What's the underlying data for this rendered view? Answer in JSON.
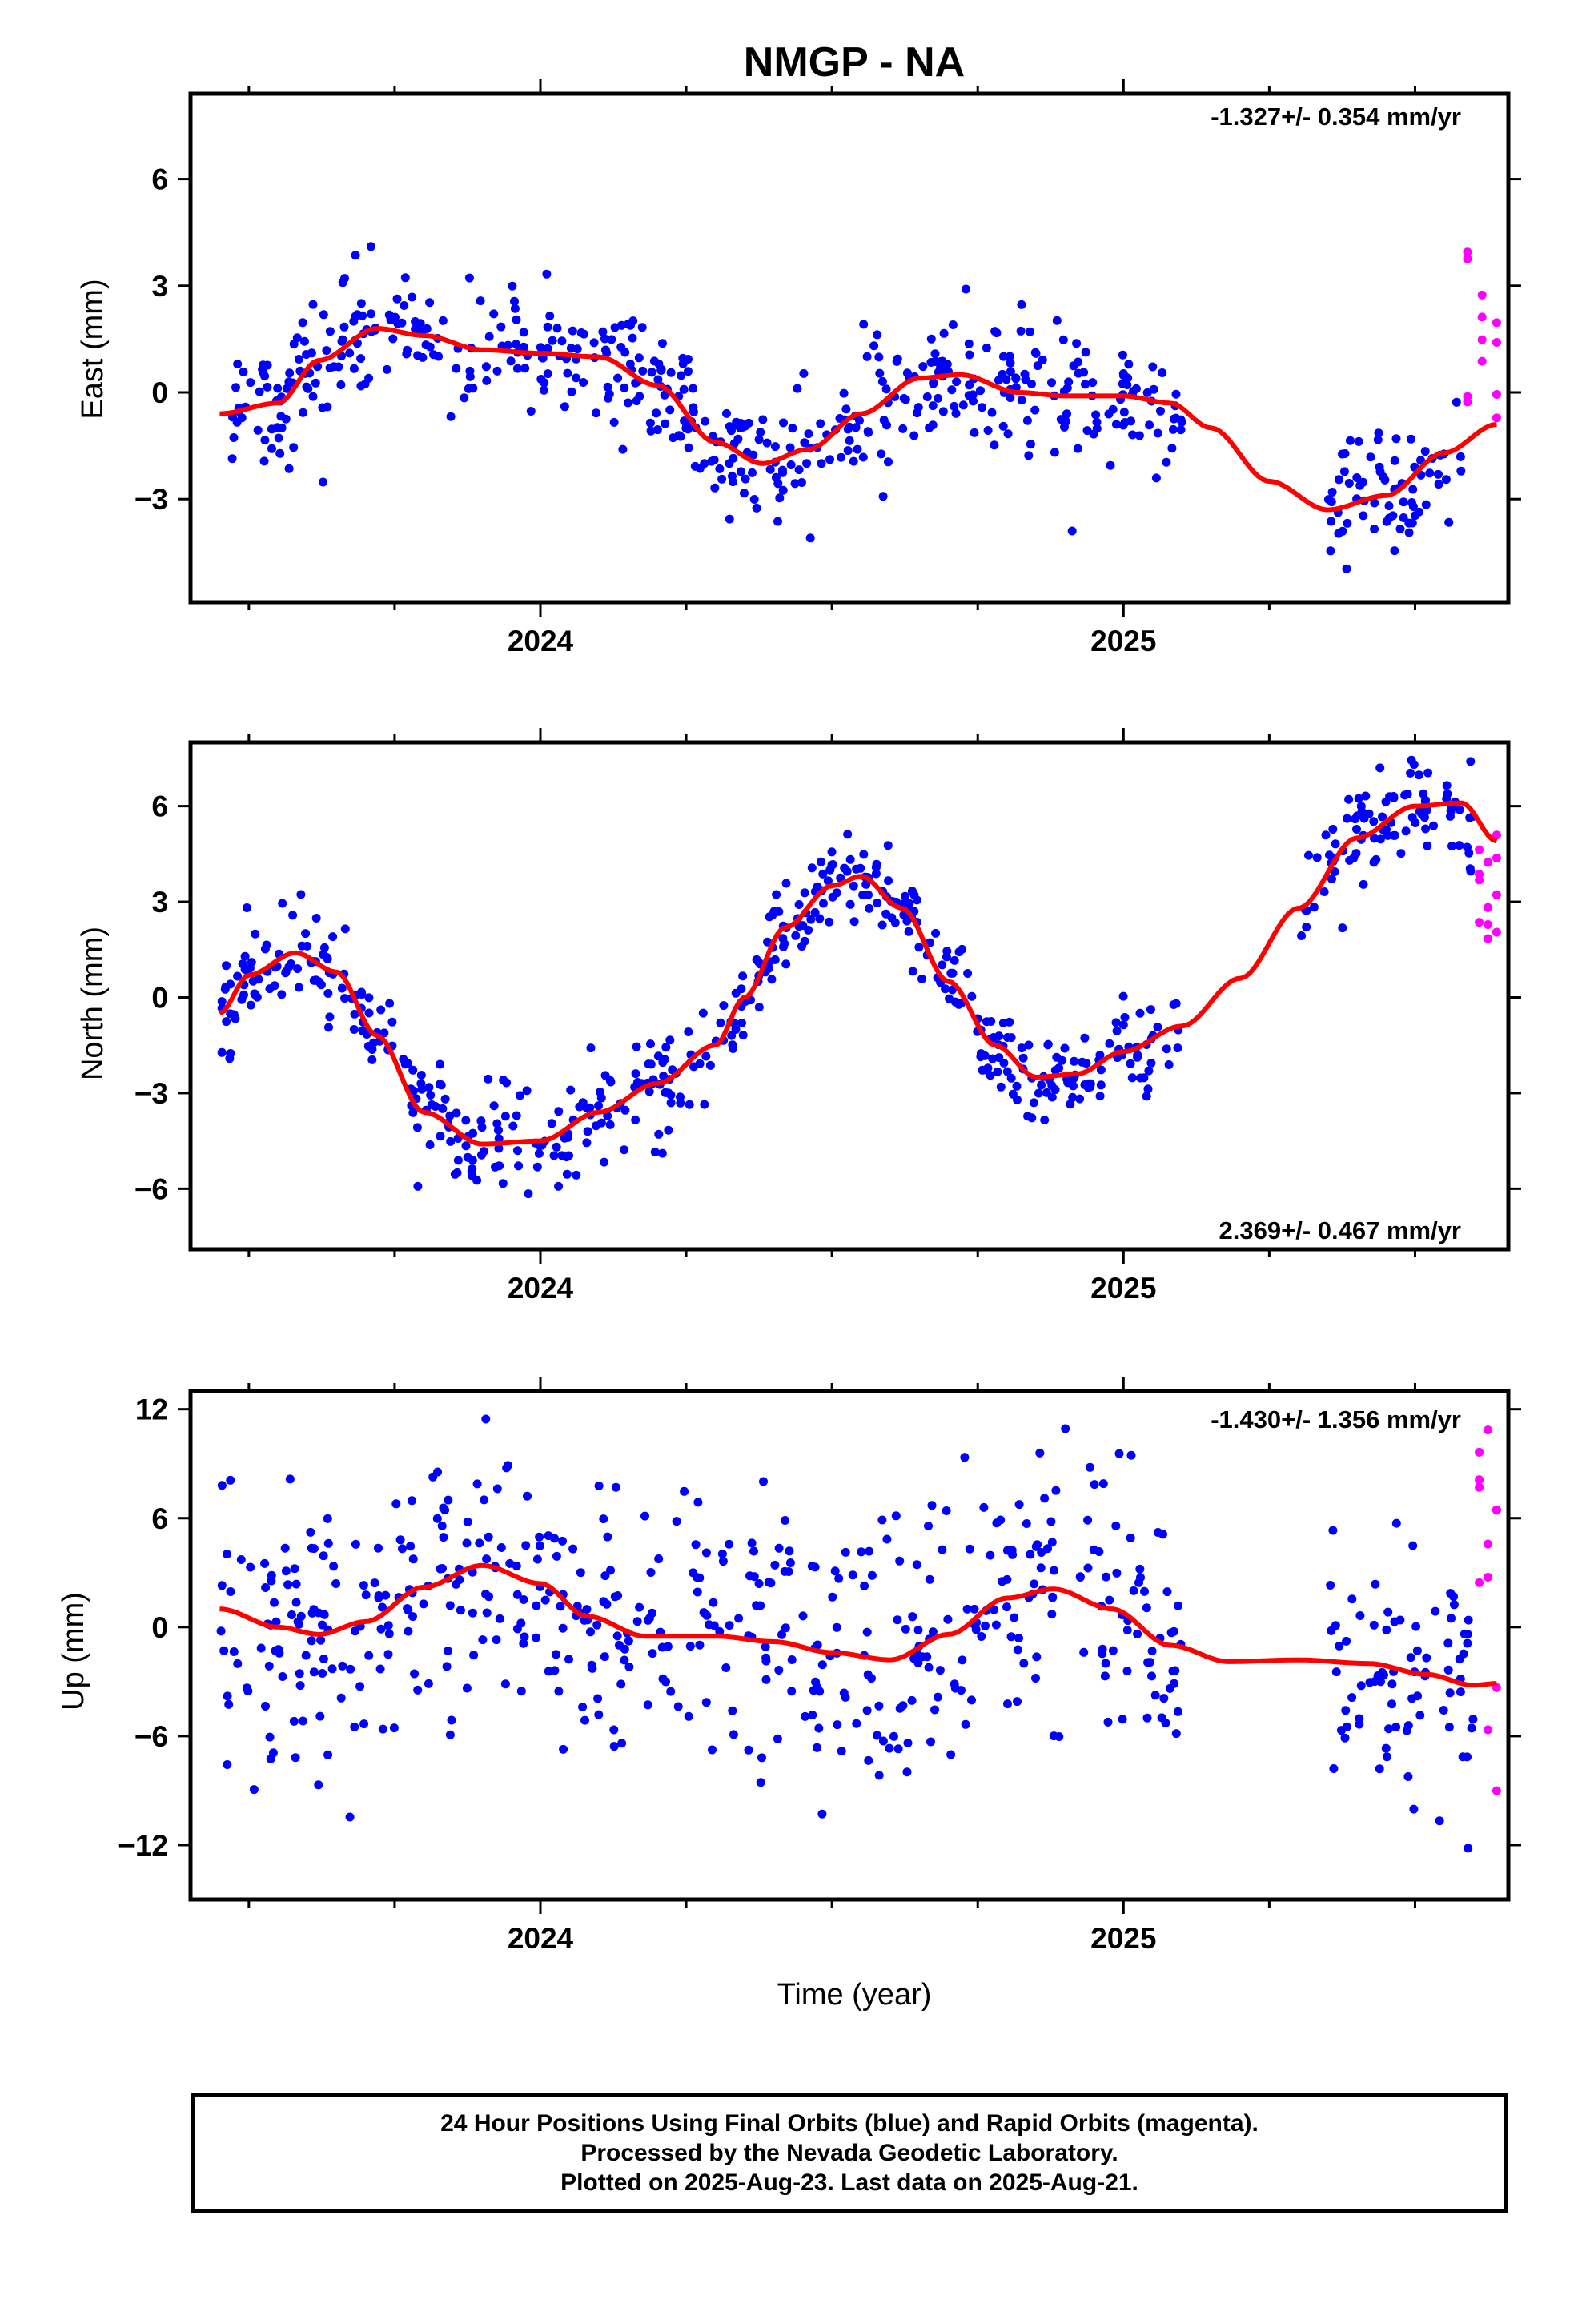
{
  "figure": {
    "title": "NMGP - NA",
    "xlabel": "Time (year)",
    "footer": {
      "line1": "24 Hour Positions Using Final Orbits (blue) and Rapid Orbits (magenta).",
      "line2": "Processed by the Nevada Geodetic Laboratory.",
      "line3": "Plotted on 2025-Aug-23. Last data on 2025-Aug-21."
    },
    "colors": {
      "final": "#0000ff",
      "rapid": "#ff00ff",
      "model": "#ff0000"
    }
  },
  "chart_data": [
    {
      "type": "scatter",
      "ylabel": "East (mm)",
      "rate": "-1.327+/- 0.354 mm/yr",
      "rate_position": "top-right",
      "xlim": [
        2023.4,
        2025.66
      ],
      "ylim": [
        -5.9,
        8.4
      ],
      "xticks": [
        2024,
        2025
      ],
      "xticklabels": [
        "2024",
        "2025"
      ],
      "yticks": [
        -3,
        0,
        3,
        6
      ],
      "yticklabels": [
        "−3",
        "0",
        "3",
        "6"
      ],
      "noise": 0.9,
      "final_range": [
        [
          2023.45,
          2025.1
        ],
        [
          2025.35,
          2025.58
        ]
      ],
      "rapid_range": [
        2025.59,
        2025.64
      ],
      "rapid_band": [
        -1,
        4
      ],
      "trend": [
        [
          2023.45,
          -0.6
        ],
        [
          2023.55,
          -0.3
        ],
        [
          2023.62,
          0.9
        ],
        [
          2023.72,
          1.8
        ],
        [
          2023.8,
          1.6
        ],
        [
          2023.9,
          1.2
        ],
        [
          2024.0,
          1.1
        ],
        [
          2024.1,
          1.0
        ],
        [
          2024.2,
          0.2
        ],
        [
          2024.3,
          -1.4
        ],
        [
          2024.38,
          -2.0
        ],
        [
          2024.46,
          -1.6
        ],
        [
          2024.55,
          -0.6
        ],
        [
          2024.65,
          0.4
        ],
        [
          2024.72,
          0.5
        ],
        [
          2024.82,
          0.0
        ],
        [
          2024.9,
          -0.1
        ],
        [
          2025.0,
          -0.1
        ],
        [
          2025.08,
          -0.3
        ],
        [
          2025.15,
          -1.0
        ],
        [
          2025.25,
          -2.5
        ],
        [
          2025.35,
          -3.3
        ],
        [
          2025.45,
          -2.9
        ],
        [
          2025.55,
          -1.7
        ],
        [
          2025.64,
          -0.9
        ]
      ]
    },
    {
      "type": "scatter",
      "ylabel": "North (mm)",
      "rate": "2.369+/- 0.467 mm/yr",
      "rate_position": "bottom-right",
      "xlim": [
        2023.4,
        2025.66
      ],
      "ylim": [
        -7.9,
        8.0
      ],
      "xticks": [
        2024,
        2025
      ],
      "xticklabels": [
        "2024",
        "2025"
      ],
      "yticks": [
        -6,
        -3,
        0,
        3,
        6
      ],
      "yticklabels": [
        "−6",
        "−3",
        "0",
        "3",
        "6"
      ],
      "noise": 0.8,
      "final_range": [
        [
          2023.45,
          2025.1
        ],
        [
          2025.3,
          2025.6
        ]
      ],
      "rapid_range": [
        2025.61,
        2025.64
      ],
      "rapid_band": [
        1.8,
        5.6
      ],
      "trend": [
        [
          2023.45,
          -0.5
        ],
        [
          2023.5,
          0.7
        ],
        [
          2023.58,
          1.4
        ],
        [
          2023.65,
          0.8
        ],
        [
          2023.72,
          -1.2
        ],
        [
          2023.8,
          -3.6
        ],
        [
          2023.9,
          -4.6
        ],
        [
          2024.0,
          -4.5
        ],
        [
          2024.1,
          -3.6
        ],
        [
          2024.2,
          -2.7
        ],
        [
          2024.3,
          -1.5
        ],
        [
          2024.35,
          0.0
        ],
        [
          2024.42,
          2.2
        ],
        [
          2024.5,
          3.5
        ],
        [
          2024.55,
          3.8
        ],
        [
          2024.62,
          2.8
        ],
        [
          2024.7,
          0.5
        ],
        [
          2024.78,
          -1.5
        ],
        [
          2024.85,
          -2.5
        ],
        [
          2024.92,
          -2.4
        ],
        [
          2025.0,
          -1.7
        ],
        [
          2025.1,
          -0.9
        ],
        [
          2025.2,
          0.6
        ],
        [
          2025.3,
          2.8
        ],
        [
          2025.4,
          5.0
        ],
        [
          2025.5,
          6.0
        ],
        [
          2025.58,
          6.1
        ],
        [
          2025.64,
          4.9
        ]
      ]
    },
    {
      "type": "scatter",
      "ylabel": "Up (mm)",
      "rate": "-1.430+/- 1.356 mm/yr",
      "rate_position": "top-right",
      "xlim": [
        2023.4,
        2025.66
      ],
      "ylim": [
        -15.0,
        13.0
      ],
      "xticks": [
        2024,
        2025
      ],
      "xticklabels": [
        "2024",
        "2025"
      ],
      "yticks": [
        -12,
        -6,
        0,
        6,
        12
      ],
      "yticklabels": [
        "−12",
        "−6",
        "0",
        "6",
        "12"
      ],
      "noise": 3.6,
      "final_range": [
        [
          2023.45,
          2025.1
        ],
        [
          2025.35,
          2025.6
        ]
      ],
      "rapid_range": [
        2025.61,
        2025.64
      ],
      "rapid_band": [
        -11,
        12.5
      ],
      "trend": [
        [
          2023.45,
          1.0
        ],
        [
          2023.55,
          0.0
        ],
        [
          2023.62,
          -0.4
        ],
        [
          2023.7,
          0.3
        ],
        [
          2023.8,
          2.2
        ],
        [
          2023.9,
          3.4
        ],
        [
          2024.0,
          2.4
        ],
        [
          2024.08,
          0.6
        ],
        [
          2024.18,
          -0.5
        ],
        [
          2024.3,
          -0.5
        ],
        [
          2024.4,
          -0.8
        ],
        [
          2024.5,
          -1.4
        ],
        [
          2024.6,
          -1.8
        ],
        [
          2024.7,
          -0.4
        ],
        [
          2024.8,
          1.6
        ],
        [
          2024.88,
          2.1
        ],
        [
          2024.98,
          1.0
        ],
        [
          2025.08,
          -1.0
        ],
        [
          2025.18,
          -1.9
        ],
        [
          2025.3,
          -1.8
        ],
        [
          2025.42,
          -2.0
        ],
        [
          2025.52,
          -2.6
        ],
        [
          2025.6,
          -3.2
        ],
        [
          2025.64,
          -3.1
        ]
      ]
    }
  ]
}
